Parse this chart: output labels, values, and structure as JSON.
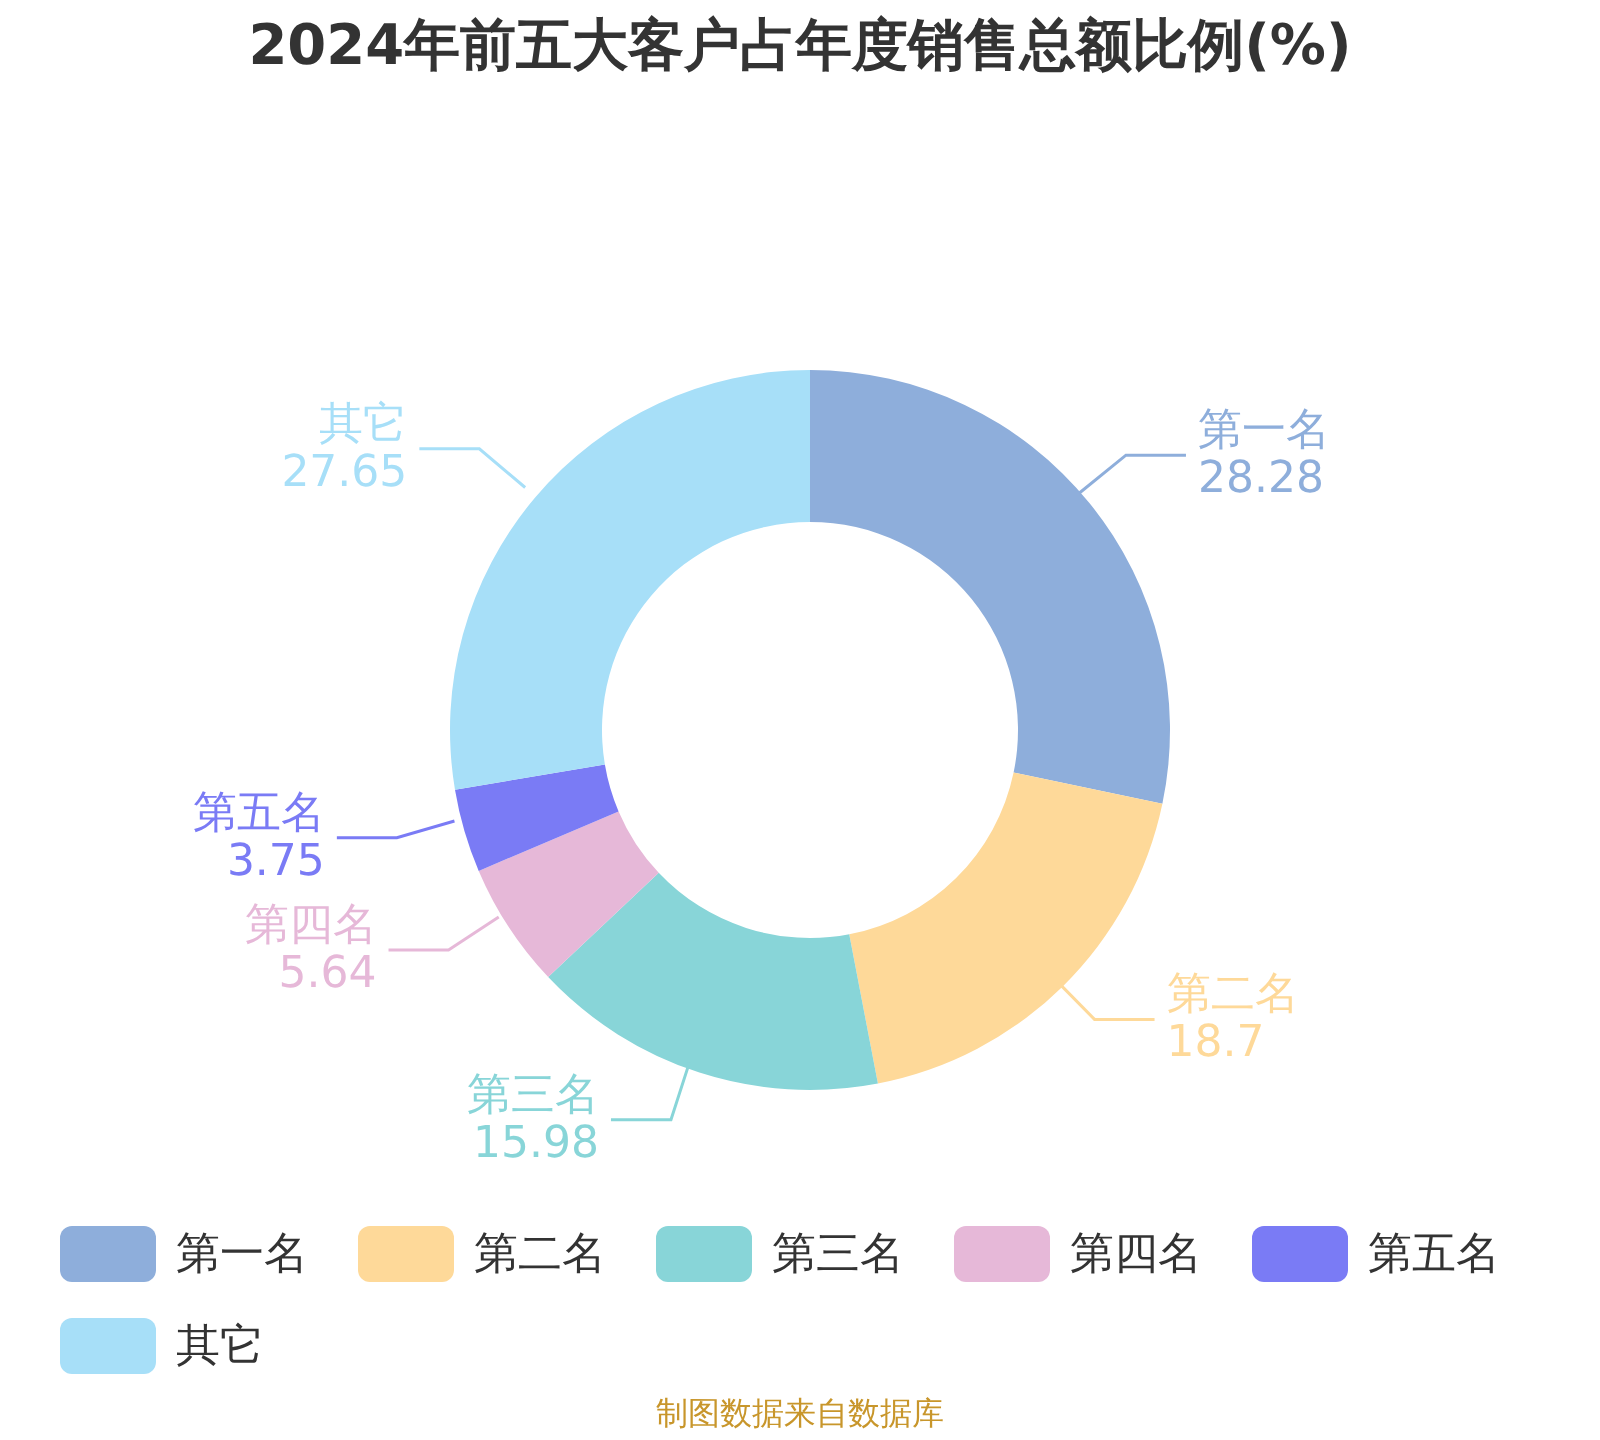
{
  "chart_data": {
    "type": "donut",
    "title": "2024年前五大客户占年度销售总额比例(%)",
    "categories": [
      "第一名",
      "第二名",
      "第三名",
      "第四名",
      "第五名",
      "其它"
    ],
    "values": [
      28.28,
      18.7,
      15.98,
      5.64,
      3.75,
      27.65
    ],
    "colors": [
      "#8eaedb",
      "#fed999",
      "#88d5d8",
      "#e6b8d8",
      "#7a7bf5",
      "#a7dff8"
    ],
    "data_labels": true,
    "legend": "bottom",
    "annotations": [
      "制图数据来自数据库"
    ]
  }
}
